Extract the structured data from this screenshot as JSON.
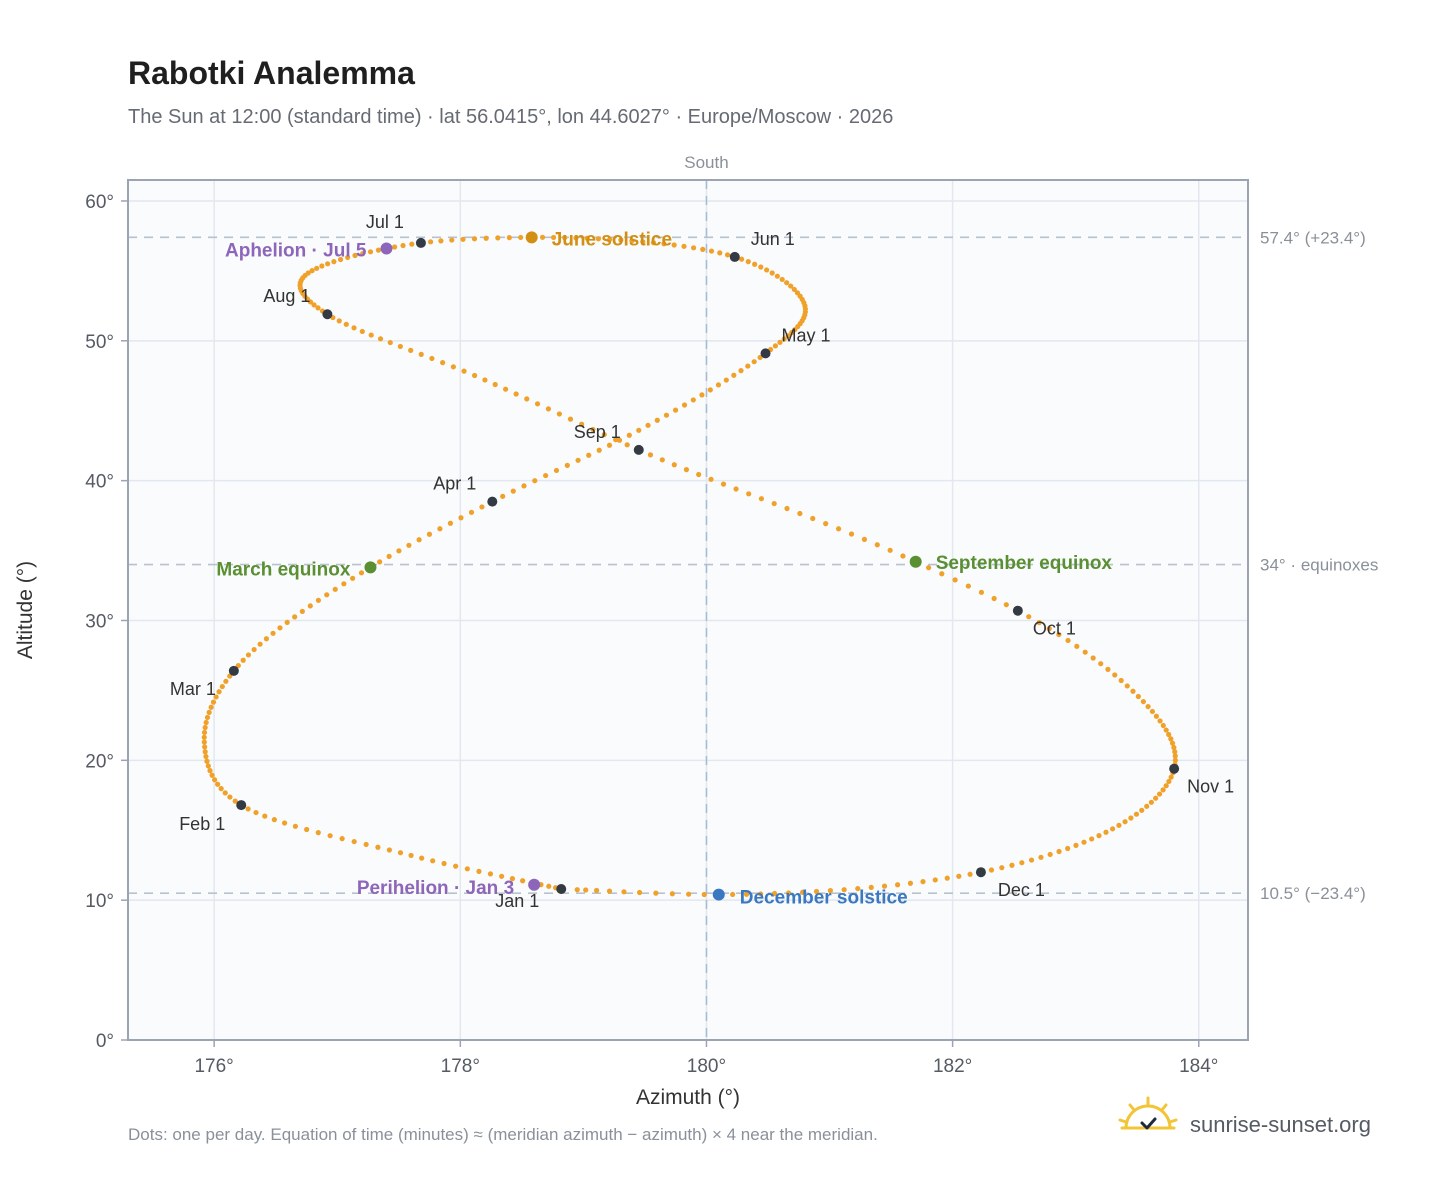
{
  "title": "Rabotki Analemma",
  "subtitle": "The Sun at 12:00 (standard time) · lat 56.0415°, lon 44.6027° · Europe/Moscow · 2026",
  "footnote": "Dots: one per day. Equation of time (minutes) ≈ (meridian azimuth − azimuth) × 4 near the meridian.",
  "brand": {
    "name": "sunrise-sunset.org",
    "icon": "sun-check-icon"
  },
  "chart_data": {
    "type": "scatter",
    "xlabel": "Azimuth (°)",
    "ylabel": "Altitude (°)",
    "xlim": [
      175.3,
      184.4
    ],
    "ylim": [
      0,
      61.5
    ],
    "xticks": [
      176,
      178,
      180,
      182,
      184
    ],
    "xtick_labels": [
      "176°",
      "178°",
      "180°",
      "182°",
      "184°"
    ],
    "yticks": [
      0,
      10,
      20,
      30,
      40,
      50,
      60
    ],
    "ytick_labels": [
      "0°",
      "10°",
      "20°",
      "30°",
      "40°",
      "50°",
      "60°"
    ],
    "grid": true,
    "meridian": {
      "azimuth": 180,
      "label": "South"
    },
    "reference_lines": [
      {
        "altitude": 57.4,
        "label": "57.4° (+23.4°)"
      },
      {
        "altitude": 34.0,
        "label": "34° · equinoxes"
      },
      {
        "altitude": 10.5,
        "label": "10.5° (−23.4°)"
      }
    ],
    "colors": {
      "curve": "#f0a12a",
      "month": "#333a44",
      "solstice_june": "#d38f12",
      "solstice_december": "#3a78c1",
      "equinox": "#5a8f32",
      "apsis": "#8e66b9",
      "plot_bg": "#f9fbfd",
      "frame": "#9aa4b2"
    },
    "series": [
      {
        "type": "daily-dots",
        "anchors": [
          [
            1,
            178.82,
            10.8
          ],
          [
            16,
            177.6,
            13.2
          ],
          [
            32,
            176.22,
            16.8
          ],
          [
            46,
            175.92,
            21.3
          ],
          [
            60,
            176.16,
            26.4
          ],
          [
            79,
            177.27,
            33.8
          ],
          [
            91,
            178.26,
            38.5
          ],
          [
            105,
            179.45,
            43.6
          ],
          [
            121,
            180.48,
            49.1
          ],
          [
            136,
            180.8,
            52.5
          ],
          [
            152,
            180.23,
            56.0
          ],
          [
            172,
            178.58,
            57.4
          ],
          [
            182,
            177.68,
            57.0
          ],
          [
            186,
            177.4,
            56.6
          ],
          [
            200,
            176.72,
            54.5
          ],
          [
            213,
            176.92,
            51.9
          ],
          [
            230,
            178.2,
            47.2
          ],
          [
            244,
            179.45,
            42.2
          ],
          [
            266,
            181.7,
            34.2
          ],
          [
            274,
            182.53,
            30.7
          ],
          [
            290,
            183.55,
            24.2
          ],
          [
            305,
            183.8,
            19.4
          ],
          [
            320,
            183.3,
            15.1
          ],
          [
            335,
            182.23,
            12.0
          ],
          [
            355,
            180.1,
            10.4
          ],
          [
            365,
            178.95,
            10.75
          ]
        ]
      }
    ],
    "months": [
      {
        "label": "Jan 1",
        "az": 178.82,
        "alt": 10.8,
        "anchor": "middle",
        "dx": -44,
        "dy": 18
      },
      {
        "label": "Feb 1",
        "az": 176.22,
        "alt": 16.8,
        "anchor": "end",
        "dx": -16,
        "dy": 25
      },
      {
        "label": "Mar 1",
        "az": 176.16,
        "alt": 26.4,
        "anchor": "end",
        "dx": -18,
        "dy": 24
      },
      {
        "label": "Apr 1",
        "az": 178.26,
        "alt": 38.5,
        "anchor": "end",
        "dx": -16,
        "dy": -12
      },
      {
        "label": "May 1",
        "az": 180.48,
        "alt": 49.1,
        "anchor": "start",
        "dx": 16,
        "dy": -12
      },
      {
        "label": "Jun 1",
        "az": 180.23,
        "alt": 56.0,
        "anchor": "start",
        "dx": 16,
        "dy": -12
      },
      {
        "label": "Jul 1",
        "az": 177.68,
        "alt": 57.0,
        "anchor": "end",
        "dx": -17,
        "dy": -15
      },
      {
        "label": "Aug 1",
        "az": 176.92,
        "alt": 51.9,
        "anchor": "end",
        "dx": -17,
        "dy": -12
      },
      {
        "label": "Sep 1",
        "az": 179.45,
        "alt": 42.2,
        "anchor": "end",
        "dx": -18,
        "dy": -12
      },
      {
        "label": "Oct 1",
        "az": 182.53,
        "alt": 30.7,
        "anchor": "start",
        "dx": 15,
        "dy": 24
      },
      {
        "label": "Nov 1",
        "az": 183.8,
        "alt": 19.4,
        "anchor": "start",
        "dx": 13,
        "dy": 24
      },
      {
        "label": "Dec 1",
        "az": 182.23,
        "alt": 12.0,
        "anchor": "start",
        "dx": 17,
        "dy": 24
      }
    ],
    "events": [
      {
        "label": "June solstice",
        "az": 178.58,
        "alt": 57.4,
        "color": "#d38f12",
        "anchor": "start",
        "dx": 20,
        "dy": 8
      },
      {
        "label": "December solstice",
        "az": 180.1,
        "alt": 10.4,
        "color": "#3a78c1",
        "anchor": "start",
        "dx": 21,
        "dy": 9
      },
      {
        "label": "March equinox",
        "az": 177.27,
        "alt": 33.8,
        "color": "#5a8f32",
        "anchor": "end",
        "dx": -20,
        "dy": 8
      },
      {
        "label": "September equinox",
        "az": 181.7,
        "alt": 34.2,
        "color": "#5a8f32",
        "anchor": "start",
        "dx": 20,
        "dy": 7
      },
      {
        "label": "Aphelion · Jul 5",
        "az": 177.4,
        "alt": 56.6,
        "color": "#8e66b9",
        "anchor": "end",
        "dx": -20,
        "dy": 8
      },
      {
        "label": "Perihelion · Jan 3",
        "az": 178.6,
        "alt": 11.1,
        "color": "#8e66b9",
        "anchor": "end",
        "dx": -20,
        "dy": 9
      }
    ]
  }
}
